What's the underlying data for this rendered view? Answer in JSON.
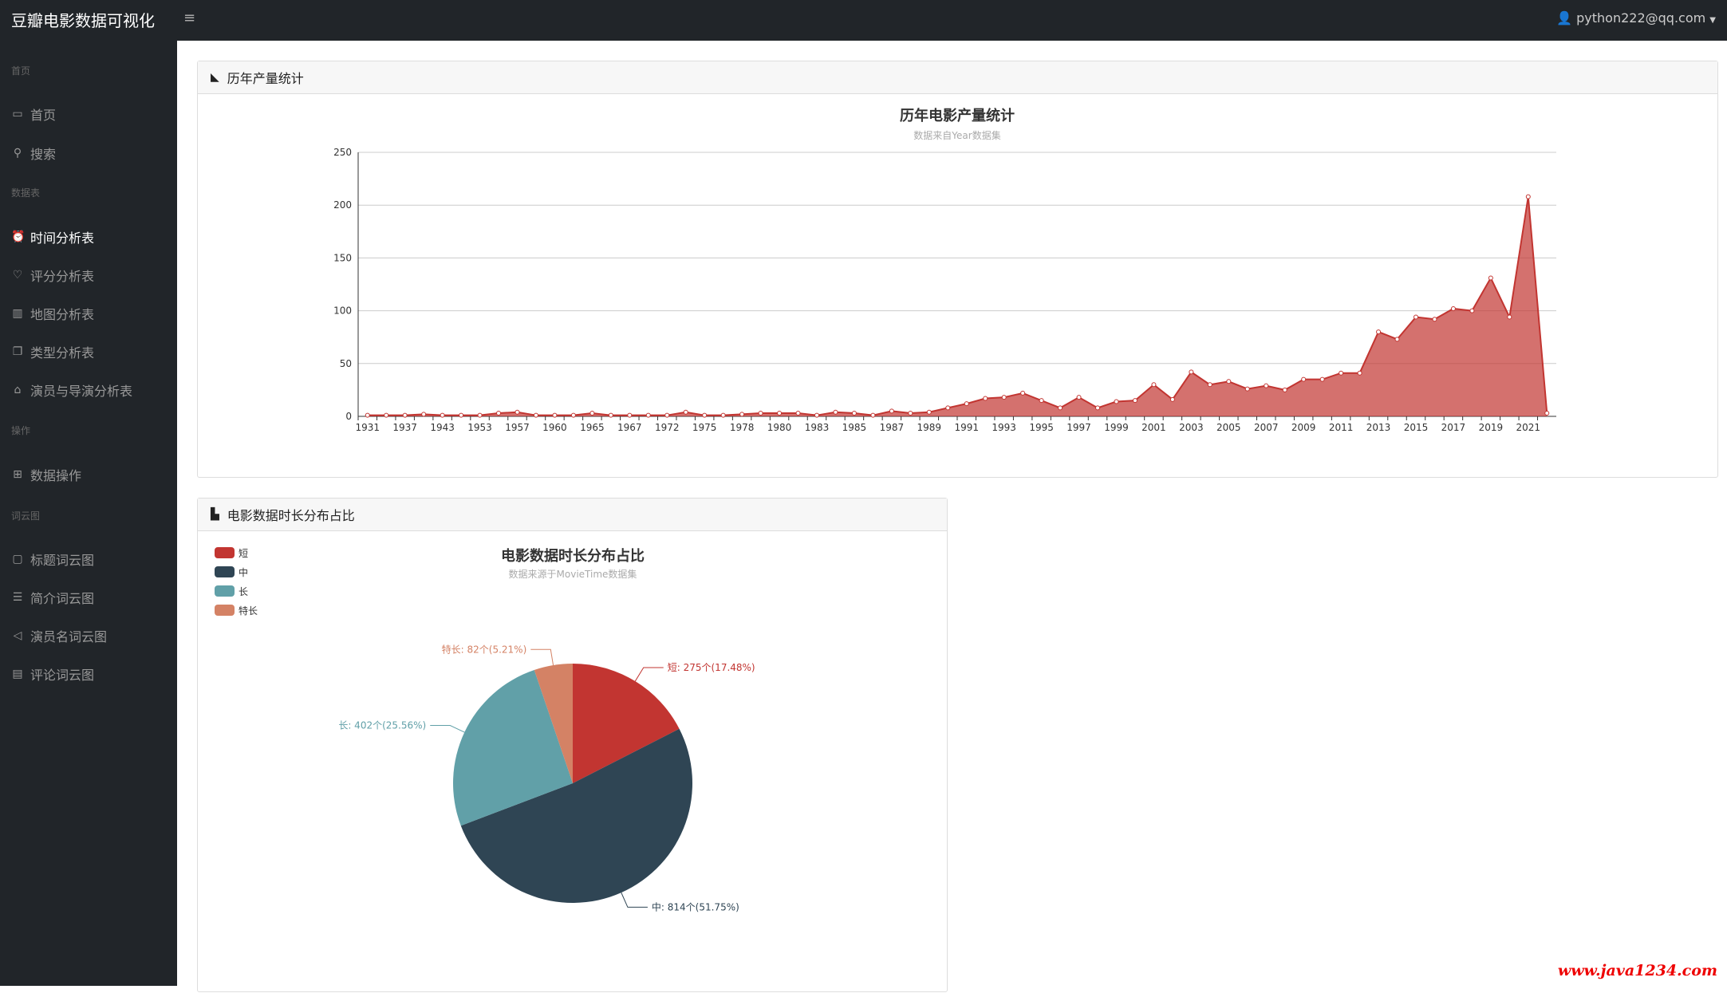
{
  "header": {
    "brand": "豆瓣电影数据可视化",
    "menu_icon": "≡",
    "user": "python222@qq.com"
  },
  "sidebar": {
    "sections": [
      {
        "title": "首页",
        "items": [
          {
            "label": "首页",
            "icon": "monitor-icon"
          },
          {
            "label": "搜索",
            "icon": "search-icon"
          }
        ]
      },
      {
        "title": "数据表",
        "items": [
          {
            "label": "时间分析表",
            "icon": "alarm-clock-icon"
          },
          {
            "label": "评分分析表",
            "icon": "heart-icon"
          },
          {
            "label": "地图分析表",
            "icon": "map-icon"
          },
          {
            "label": "类型分析表",
            "icon": "layers-icon"
          },
          {
            "label": "演员与导演分析表",
            "icon": "bank-icon"
          }
        ]
      },
      {
        "title": "操作",
        "items": [
          {
            "label": "数据操作",
            "icon": "grid-icon"
          }
        ]
      },
      {
        "title": "词云图",
        "items": [
          {
            "label": "标题词云图",
            "icon": "chat-icon"
          },
          {
            "label": "简介词云图",
            "icon": "text-icon"
          },
          {
            "label": "演员名词云图",
            "icon": "send-icon"
          },
          {
            "label": "评论词云图",
            "icon": "list-icon"
          }
        ]
      }
    ]
  },
  "cards": {
    "line": "历年产量统计",
    "pie": "电影数据时长分布占比"
  },
  "watermark": "www.java1234.com",
  "chart_data": [
    {
      "type": "area",
      "title": "历年电影产量统计",
      "subtitle": "数据来自Year数据集",
      "color": "#c23531",
      "ylim": [
        0,
        250
      ],
      "yticks": [
        0,
        50,
        100,
        150,
        200,
        250
      ],
      "categories": [
        "1931",
        "1934",
        "1937",
        "1940",
        "1943",
        "1949",
        "1953",
        "1955",
        "1957",
        "1958",
        "1960",
        "1962",
        "1965",
        "1966",
        "1967",
        "1970",
        "1972",
        "1974",
        "1975",
        "1977",
        "1978",
        "1979",
        "1980",
        "1982",
        "1983",
        "1984",
        "1985",
        "1986",
        "1987",
        "1988",
        "1989",
        "1990",
        "1991",
        "1992",
        "1993",
        "1994",
        "1995",
        "1996",
        "1997",
        "1998",
        "1999",
        "2000",
        "2001",
        "2002",
        "2003",
        "2004",
        "2005",
        "2006",
        "2007",
        "2008",
        "2009",
        "2010",
        "2011",
        "2012",
        "2013",
        "2014",
        "2015",
        "2016",
        "2017",
        "2018",
        "2019",
        "2020",
        "2021",
        "2022"
      ],
      "values": [
        1,
        1,
        1,
        2,
        1,
        1,
        1,
        3,
        4,
        1,
        1,
        1,
        3,
        1,
        1,
        1,
        1,
        4,
        1,
        1,
        2,
        3,
        3,
        3,
        1,
        4,
        3,
        1,
        5,
        3,
        4,
        8,
        12,
        17,
        18,
        22,
        15,
        8,
        18,
        8,
        14,
        15,
        30,
        16,
        42,
        30,
        33,
        26,
        29,
        25,
        35,
        35,
        41,
        41,
        80,
        73,
        94,
        92,
        102,
        100,
        131,
        94,
        208,
        3
      ]
    },
    {
      "type": "pie",
      "title": "电影数据时长分布占比",
      "subtitle": "数据来源于MovieTime数据集",
      "legend": "top-left",
      "slices": [
        {
          "name": "短",
          "value": 275,
          "label": "短: 275个(17.48%)",
          "color": "#c23531"
        },
        {
          "name": "中",
          "value": 814,
          "label": "中: 814个(51.75%)",
          "color": "#2f4554"
        },
        {
          "name": "长",
          "value": 402,
          "label": "长: 402个(25.56%)",
          "color": "#61a0a8"
        },
        {
          "name": "特长",
          "value": 82,
          "label": "特长: 82个(5.21%)",
          "color": "#d48265"
        }
      ]
    }
  ]
}
